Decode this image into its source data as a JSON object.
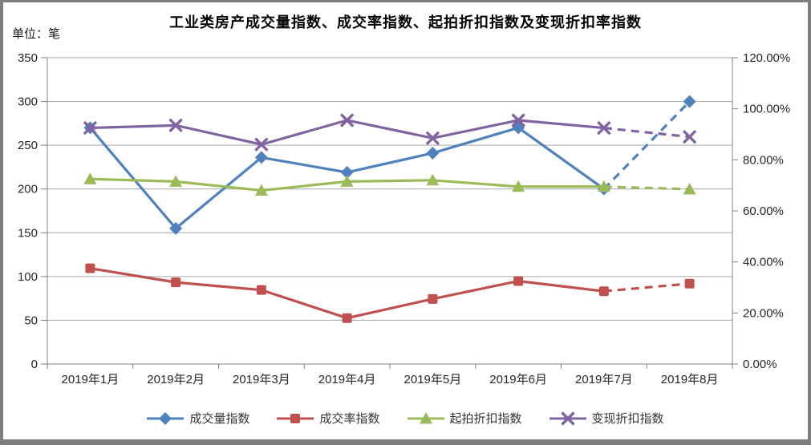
{
  "header": {
    "title": "工业类房产成交量指数、成交率指数、起拍折扣指数及变现折扣率指数",
    "unit_label": "单位：笔"
  },
  "chart_data": {
    "type": "line",
    "title": "工业类房产成交量指数、成交率指数、起拍折扣指数及变现折扣率指数",
    "unit_label": "单位：笔",
    "categories": [
      "2019年1月",
      "2019年2月",
      "2019年3月",
      "2019年4月",
      "2019年5月",
      "2019年6月",
      "2019年7月",
      "2019年8月"
    ],
    "series": [
      {
        "name": "成交量指数",
        "axis": "left",
        "marker": "diamond",
        "color": "#4F81BD",
        "values": [
          270,
          155,
          236,
          219,
          241,
          270,
          200,
          300
        ],
        "last_segment_dashed": true
      },
      {
        "name": "成交率指数",
        "axis": "right",
        "marker": "square",
        "color": "#C0504D",
        "values": [
          37.5,
          32,
          29,
          18,
          25.5,
          32.5,
          28.5,
          31.5
        ],
        "last_segment_dashed": true
      },
      {
        "name": "起拍折扣指数",
        "axis": "right",
        "marker": "triangle",
        "color": "#9BBB59",
        "values": [
          72.5,
          71.5,
          68,
          71.5,
          72,
          69.5,
          69.5,
          68.5
        ],
        "last_segment_dashed": true
      },
      {
        "name": "变现折扣指数",
        "axis": "right",
        "marker": "x",
        "color": "#8064A2",
        "values": [
          92.5,
          93.5,
          86,
          95.5,
          88.5,
          95.5,
          92.5,
          89
        ],
        "last_segment_dashed": true
      }
    ],
    "y_axis_left": {
      "min": 0,
      "max": 350,
      "step": 50,
      "tick_labels": [
        "350",
        "300",
        "250",
        "200",
        "150",
        "100",
        "50",
        "0"
      ]
    },
    "y_axis_right": {
      "min": 0,
      "max": 120,
      "step": 20,
      "tick_labels": [
        "120.00%",
        "100.00%",
        "80.00%",
        "60.00%",
        "40.00%",
        "20.00%",
        "0.00%"
      ]
    },
    "legend_position": "bottom",
    "grid": true
  },
  "colors": {
    "grid": "#a6a6a6",
    "axis": "#808080",
    "tick_text": "#262626",
    "frame_border": "#7e7e7e"
  }
}
